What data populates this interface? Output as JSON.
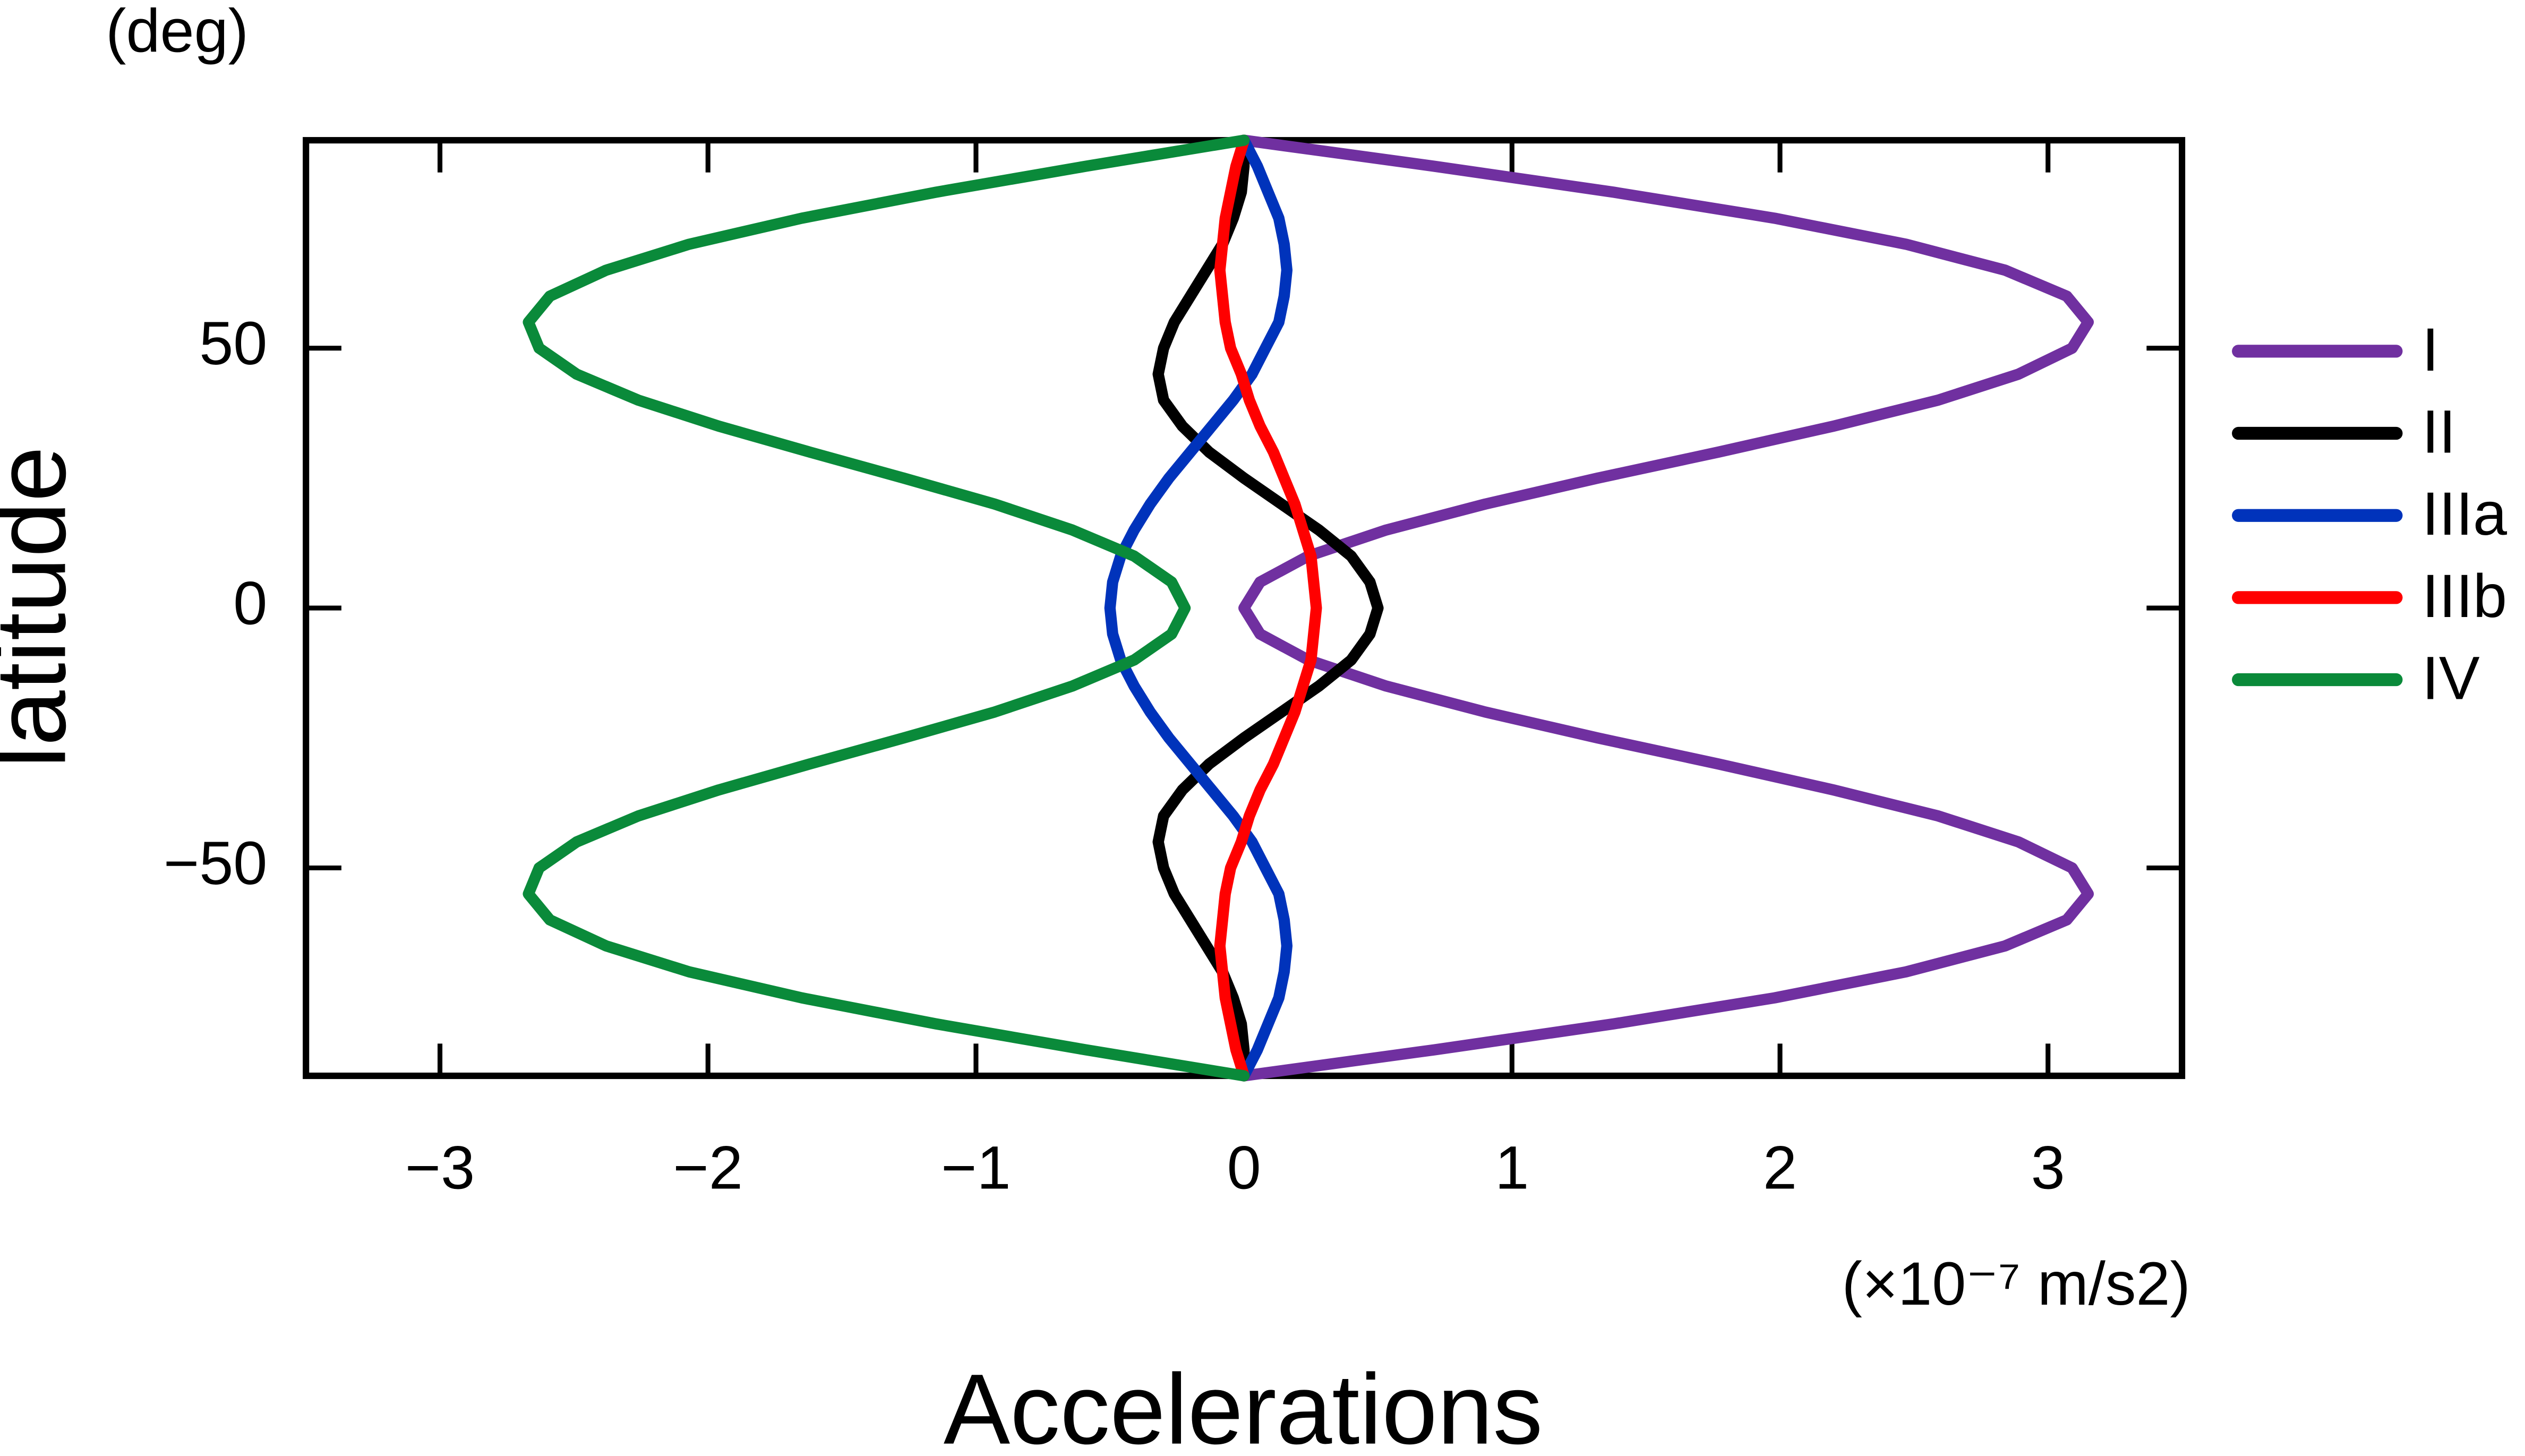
{
  "chart_data": {
    "type": "line",
    "x_label": "Accelerations",
    "x_unit": "(×10⁻⁷ m/s2)",
    "y_label": "latitude",
    "y_unit": "(deg)",
    "xlim": [
      -3.5,
      3.5
    ],
    "ylim": [
      -90,
      90
    ],
    "xticks": [
      {
        "value": -3,
        "label": "−3"
      },
      {
        "value": -2,
        "label": "−2"
      },
      {
        "value": -1,
        "label": "−1"
      },
      0,
      1,
      2,
      3
    ],
    "yticks": [
      {
        "value": -50,
        "label": "−50"
      },
      0,
      50
    ],
    "legend": "right",
    "latitudes": [
      -90,
      -85,
      -80,
      -75,
      -70,
      -65,
      -60,
      -55,
      -50,
      -45,
      -40,
      -35,
      -30,
      -25,
      -20,
      -15,
      -10,
      -5,
      0,
      5,
      10,
      15,
      20,
      25,
      30,
      35,
      40,
      45,
      50,
      55,
      60,
      65,
      70,
      75,
      80,
      85,
      90
    ],
    "series": [
      {
        "name": "I",
        "color": "#7030a0",
        "values": [
          0,
          0.71,
          1.38,
          1.98,
          2.47,
          2.84,
          3.07,
          3.15,
          3.09,
          2.89,
          2.59,
          2.2,
          1.77,
          1.32,
          0.9,
          0.53,
          0.24,
          0.06,
          0,
          0.06,
          0.24,
          0.53,
          0.9,
          1.32,
          1.77,
          2.2,
          2.59,
          2.89,
          3.09,
          3.15,
          3.07,
          2.84,
          2.47,
          1.98,
          1.38,
          0.71,
          0
        ]
      },
      {
        "name": "II",
        "color": "#000000",
        "values": [
          0,
          0,
          -0.01,
          -0.04,
          -0.08,
          -0.14,
          -0.2,
          -0.26,
          -0.3,
          -0.32,
          -0.3,
          -0.23,
          -0.13,
          0,
          0.14,
          0.28,
          0.4,
          0.47,
          0.5,
          0.47,
          0.4,
          0.28,
          0.14,
          0,
          -0.13,
          -0.23,
          -0.3,
          -0.32,
          -0.3,
          -0.26,
          -0.2,
          -0.14,
          -0.08,
          -0.04,
          -0.01,
          0,
          0
        ]
      },
      {
        "name": "IIIa",
        "color": "#0033bb",
        "values": [
          0,
          0.05,
          0.09,
          0.13,
          0.15,
          0.16,
          0.15,
          0.13,
          0.08,
          0.03,
          -0.04,
          -0.12,
          -0.2,
          -0.28,
          -0.35,
          -0.41,
          -0.46,
          -0.49,
          -0.5,
          -0.49,
          -0.46,
          -0.41,
          -0.35,
          -0.28,
          -0.2,
          -0.12,
          -0.04,
          0.03,
          0.08,
          0.13,
          0.15,
          0.16,
          0.15,
          0.13,
          0.09,
          0.05,
          0
        ]
      },
      {
        "name": "IIIb",
        "color": "#ff0000",
        "values": [
          0,
          -0.03,
          -0.05,
          -0.07,
          -0.08,
          -0.09,
          -0.08,
          -0.07,
          -0.05,
          -0.01,
          0.02,
          0.06,
          0.11,
          0.15,
          0.19,
          0.22,
          0.25,
          0.26,
          0.27,
          0.26,
          0.25,
          0.22,
          0.19,
          0.15,
          0.11,
          0.06,
          0.02,
          -0.01,
          -0.05,
          -0.07,
          -0.08,
          -0.09,
          -0.08,
          -0.07,
          -0.05,
          -0.03,
          0
        ]
      },
      {
        "name": "IV",
        "color": "#0a8a3a",
        "values": [
          0,
          -0.59,
          -1.15,
          -1.65,
          -2.07,
          -2.38,
          -2.59,
          -2.67,
          -2.63,
          -2.49,
          -2.26,
          -1.96,
          -1.62,
          -1.27,
          -0.93,
          -0.64,
          -0.41,
          -0.27,
          -0.22,
          -0.27,
          -0.41,
          -0.64,
          -0.93,
          -1.27,
          -1.62,
          -1.96,
          -2.26,
          -2.49,
          -2.63,
          -2.67,
          -2.59,
          -2.38,
          -2.07,
          -1.65,
          -1.15,
          -0.59,
          0
        ]
      }
    ]
  }
}
